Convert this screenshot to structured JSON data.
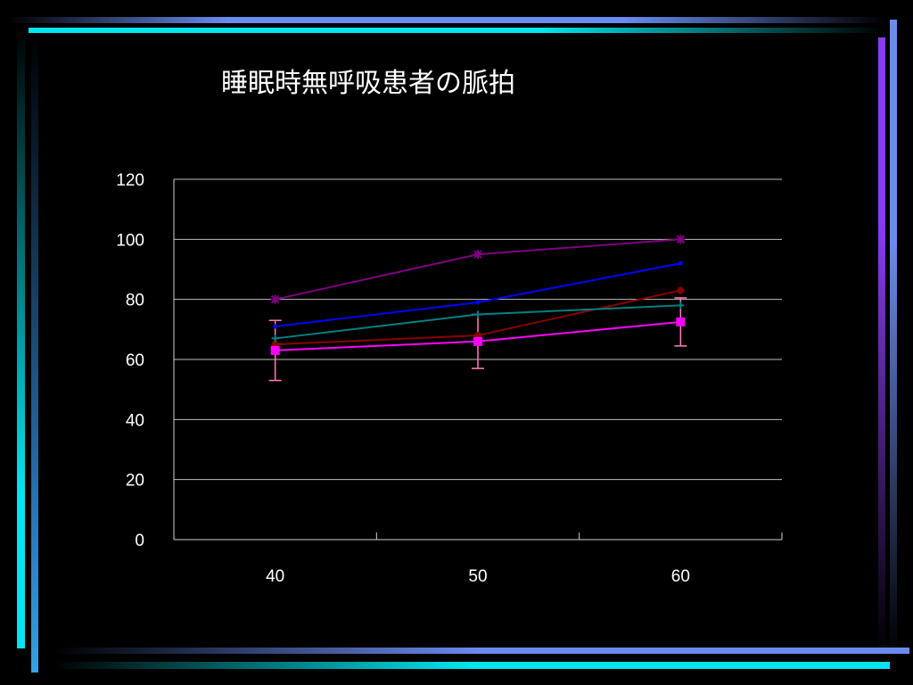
{
  "slide": {
    "title": "睡眠時無呼吸患者の脈拍",
    "background_color": "#000000",
    "frame_colors": {
      "cyan": "#00e5ee",
      "blue": "#6a8cf0",
      "violet": "#8a3cf0"
    }
  },
  "chart_data": {
    "type": "line",
    "title": "睡眠時無呼吸患者の脈拍",
    "xlabel": "",
    "ylabel": "",
    "categories": [
      "40",
      "50",
      "60"
    ],
    "ylim": [
      0,
      120
    ],
    "yticks": [
      "0",
      "20",
      "40",
      "60",
      "80",
      "100",
      "120"
    ],
    "grid": true,
    "legend": "none",
    "series": [
      {
        "color": "#800080",
        "marker": "asterisk",
        "values": [
          80,
          95,
          100
        ]
      },
      {
        "color": "#0000ff",
        "marker": "dot",
        "values": [
          71,
          79,
          92
        ]
      },
      {
        "color": "#8b0000",
        "marker": "circle",
        "values": [
          65,
          68,
          83
        ]
      },
      {
        "color": "#008080",
        "marker": "plus",
        "values": [
          67,
          75,
          78
        ]
      },
      {
        "color": "#ff00ff",
        "marker": "square",
        "values": [
          63,
          66,
          72.5
        ],
        "error": [
          10,
          9,
          8
        ],
        "error_color": "#ff7fbf"
      }
    ]
  }
}
